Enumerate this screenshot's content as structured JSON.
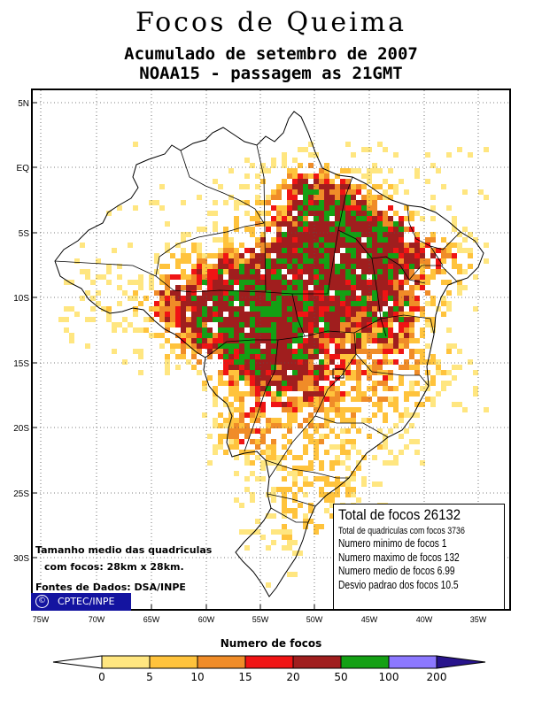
{
  "title": "Focos de Queima",
  "subtitle1": "Acumulado de setembro de 2007",
  "subtitle2": "NOAA15 - passagem as 21GMT",
  "lat_labels": [
    "5N",
    "EQ",
    "5S",
    "10S",
    "15S",
    "20S",
    "25S",
    "30S"
  ],
  "lon_labels": [
    "75W",
    "70W",
    "65W",
    "60W",
    "55W",
    "50W",
    "45W",
    "40W",
    "35W"
  ],
  "stats": {
    "total": "Total de focos 26132",
    "quadriculas": "Total de quadriculas com focos 3736",
    "minimo": "Numero minimo de focos 1",
    "maximo": "Numero maximo de focos 132",
    "medio": "Numero medio de focos 6.99",
    "desvio": "Desvio padrao dos focos 10.5"
  },
  "notes": {
    "line1": "Tamanho medio das quadriculas",
    "line2": "com focos: 28km x 28km.",
    "line3": "Fontes de Dados: DSA/INPE"
  },
  "badge": {
    "symbol": "©",
    "text": "CPTEC/INPE"
  },
  "legend": {
    "title": "Numero de focos",
    "ticks": [
      "0",
      "5",
      "10",
      "15",
      "20",
      "50",
      "100",
      "200"
    ],
    "colors": [
      "#ffffff",
      "#ffe680",
      "#ffc33c",
      "#f08c28",
      "#f01414",
      "#a01e1e",
      "#14a014",
      "#8c78ff",
      "#28148c"
    ]
  }
}
